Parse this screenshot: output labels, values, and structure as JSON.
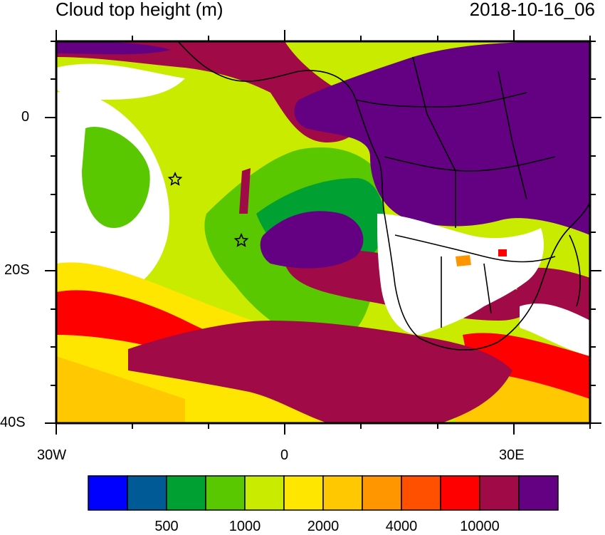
{
  "title_left": "Cloud top height (m)",
  "title_right": "2018-10-16_06",
  "y_ticks": [
    "0",
    "20S",
    "40S"
  ],
  "x_ticks": [
    "30W",
    "0",
    "30E"
  ],
  "colorbar": {
    "colors": [
      "#0000ff",
      "#005a96",
      "#00a032",
      "#5ac800",
      "#c8eb00",
      "#ffe600",
      "#ffc800",
      "#ff9600",
      "#ff5000",
      "#ff0000",
      "#a00a46",
      "#640082"
    ],
    "labels": [
      "500",
      "1000",
      "2000",
      "4000",
      "10000"
    ]
  },
  "palette": {
    "white": "#ffffff",
    "purple": "#640082",
    "crimson": "#a00a46",
    "red": "#ff0000",
    "orange_red": "#ff5000",
    "orange": "#ff9600",
    "gold": "#ffc800",
    "yellow": "#ffe600",
    "lime": "#c8eb00",
    "green": "#5ac800",
    "dark_green": "#00a032",
    "teal": "#005a96"
  }
}
